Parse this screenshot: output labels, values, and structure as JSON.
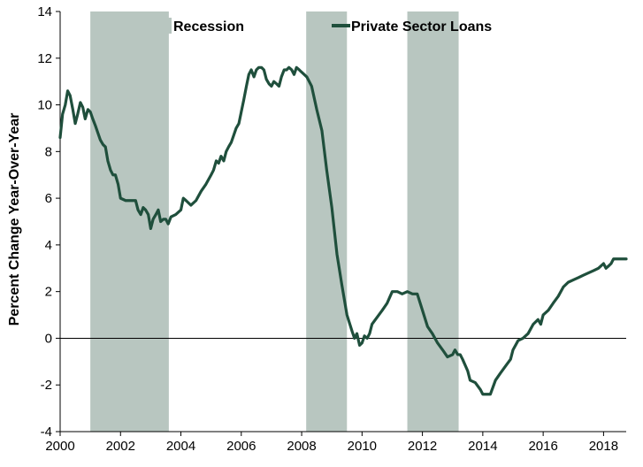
{
  "chart_data": {
    "type": "line",
    "title": "",
    "xlabel": "",
    "ylabel": "Percent Change Year-Over-Year",
    "xlim": [
      2000,
      2018.75
    ],
    "ylim": [
      -4,
      14
    ],
    "x_ticks": [
      "2000",
      "2002",
      "2004",
      "2006",
      "2008",
      "2010",
      "2012",
      "2014",
      "2016",
      "2018"
    ],
    "y_ticks": [
      "14",
      "12",
      "10",
      "8",
      "6",
      "4",
      "2",
      "0",
      "-2",
      "-4"
    ],
    "grid": false,
    "legend_position": "top",
    "legend": {
      "recession_label": "Recession",
      "series_label": "Private Sector Loans"
    },
    "colors": {
      "line": "#1f4f3c",
      "recession": "#b8c6c0",
      "axis": "#000000"
    },
    "recessions": [
      [
        2001.0,
        2003.6
      ],
      [
        2008.15,
        2009.5
      ],
      [
        2011.5,
        2013.2
      ]
    ],
    "series": [
      {
        "name": "Private Sector Loans",
        "points": [
          [
            2000.0,
            8.6
          ],
          [
            2000.08,
            9.6
          ],
          [
            2000.17,
            10.0
          ],
          [
            2000.25,
            10.6
          ],
          [
            2000.33,
            10.4
          ],
          [
            2000.42,
            9.8
          ],
          [
            2000.5,
            9.2
          ],
          [
            2000.58,
            9.6
          ],
          [
            2000.67,
            10.1
          ],
          [
            2000.75,
            9.9
          ],
          [
            2000.83,
            9.4
          ],
          [
            2000.92,
            9.8
          ],
          [
            2001.0,
            9.7
          ],
          [
            2001.08,
            9.4
          ],
          [
            2001.17,
            9.1
          ],
          [
            2001.25,
            8.8
          ],
          [
            2001.33,
            8.5
          ],
          [
            2001.42,
            8.3
          ],
          [
            2001.5,
            8.2
          ],
          [
            2001.58,
            7.6
          ],
          [
            2001.67,
            7.2
          ],
          [
            2001.75,
            7.0
          ],
          [
            2001.83,
            7.0
          ],
          [
            2001.92,
            6.6
          ],
          [
            2002.0,
            6.0
          ],
          [
            2002.17,
            5.9
          ],
          [
            2002.33,
            5.9
          ],
          [
            2002.5,
            5.9
          ],
          [
            2002.58,
            5.5
          ],
          [
            2002.67,
            5.3
          ],
          [
            2002.75,
            5.6
          ],
          [
            2002.83,
            5.5
          ],
          [
            2002.92,
            5.3
          ],
          [
            2003.0,
            4.7
          ],
          [
            2003.08,
            5.1
          ],
          [
            2003.17,
            5.3
          ],
          [
            2003.25,
            5.5
          ],
          [
            2003.33,
            5.0
          ],
          [
            2003.42,
            5.1
          ],
          [
            2003.5,
            5.1
          ],
          [
            2003.58,
            4.9
          ],
          [
            2003.67,
            5.2
          ],
          [
            2003.83,
            5.3
          ],
          [
            2004.0,
            5.5
          ],
          [
            2004.08,
            6.0
          ],
          [
            2004.17,
            5.9
          ],
          [
            2004.33,
            5.7
          ],
          [
            2004.5,
            5.9
          ],
          [
            2004.67,
            6.3
          ],
          [
            2004.83,
            6.6
          ],
          [
            2005.0,
            7.0
          ],
          [
            2005.08,
            7.2
          ],
          [
            2005.17,
            7.6
          ],
          [
            2005.25,
            7.5
          ],
          [
            2005.33,
            7.8
          ],
          [
            2005.42,
            7.6
          ],
          [
            2005.5,
            8.0
          ],
          [
            2005.58,
            8.2
          ],
          [
            2005.67,
            8.4
          ],
          [
            2005.75,
            8.7
          ],
          [
            2005.83,
            9.0
          ],
          [
            2005.92,
            9.2
          ],
          [
            2006.0,
            9.7
          ],
          [
            2006.08,
            10.2
          ],
          [
            2006.17,
            10.8
          ],
          [
            2006.25,
            11.3
          ],
          [
            2006.33,
            11.5
          ],
          [
            2006.42,
            11.2
          ],
          [
            2006.5,
            11.5
          ],
          [
            2006.58,
            11.6
          ],
          [
            2006.67,
            11.6
          ],
          [
            2006.75,
            11.5
          ],
          [
            2006.83,
            11.1
          ],
          [
            2006.92,
            10.9
          ],
          [
            2007.0,
            10.8
          ],
          [
            2007.08,
            11.0
          ],
          [
            2007.17,
            10.9
          ],
          [
            2007.25,
            10.8
          ],
          [
            2007.33,
            11.2
          ],
          [
            2007.42,
            11.5
          ],
          [
            2007.5,
            11.5
          ],
          [
            2007.58,
            11.6
          ],
          [
            2007.67,
            11.5
          ],
          [
            2007.75,
            11.3
          ],
          [
            2007.83,
            11.6
          ],
          [
            2007.92,
            11.5
          ],
          [
            2008.0,
            11.4
          ],
          [
            2008.17,
            11.2
          ],
          [
            2008.33,
            10.8
          ],
          [
            2008.5,
            9.8
          ],
          [
            2008.67,
            8.9
          ],
          [
            2008.83,
            7.2
          ],
          [
            2009.0,
            5.6
          ],
          [
            2009.17,
            3.6
          ],
          [
            2009.33,
            2.3
          ],
          [
            2009.5,
            1.0
          ],
          [
            2009.67,
            0.3
          ],
          [
            2009.75,
            0.0
          ],
          [
            2009.83,
            0.2
          ],
          [
            2009.92,
            -0.3
          ],
          [
            2010.0,
            -0.2
          ],
          [
            2010.08,
            0.1
          ],
          [
            2010.17,
            0.0
          ],
          [
            2010.25,
            0.2
          ],
          [
            2010.33,
            0.6
          ],
          [
            2010.5,
            0.9
          ],
          [
            2010.67,
            1.2
          ],
          [
            2010.83,
            1.5
          ],
          [
            2011.0,
            2.0
          ],
          [
            2011.17,
            2.0
          ],
          [
            2011.33,
            1.9
          ],
          [
            2011.5,
            2.0
          ],
          [
            2011.67,
            1.9
          ],
          [
            2011.83,
            1.9
          ],
          [
            2012.0,
            1.2
          ],
          [
            2012.17,
            0.5
          ],
          [
            2012.33,
            0.2
          ],
          [
            2012.5,
            -0.2
          ],
          [
            2012.67,
            -0.5
          ],
          [
            2012.83,
            -0.8
          ],
          [
            2013.0,
            -0.7
          ],
          [
            2013.08,
            -0.5
          ],
          [
            2013.17,
            -0.7
          ],
          [
            2013.25,
            -0.7
          ],
          [
            2013.33,
            -0.9
          ],
          [
            2013.5,
            -1.4
          ],
          [
            2013.58,
            -1.8
          ],
          [
            2013.75,
            -1.9
          ],
          [
            2013.92,
            -2.2
          ],
          [
            2014.0,
            -2.4
          ],
          [
            2014.25,
            -2.4
          ],
          [
            2014.42,
            -1.8
          ],
          [
            2014.58,
            -1.5
          ],
          [
            2014.75,
            -1.2
          ],
          [
            2014.92,
            -0.9
          ],
          [
            2015.0,
            -0.5
          ],
          [
            2015.17,
            -0.1
          ],
          [
            2015.33,
            0.0
          ],
          [
            2015.5,
            0.2
          ],
          [
            2015.67,
            0.6
          ],
          [
            2015.83,
            0.8
          ],
          [
            2015.92,
            0.6
          ],
          [
            2016.0,
            1.0
          ],
          [
            2016.17,
            1.2
          ],
          [
            2016.33,
            1.5
          ],
          [
            2016.5,
            1.8
          ],
          [
            2016.67,
            2.2
          ],
          [
            2016.83,
            2.4
          ],
          [
            2017.0,
            2.5
          ],
          [
            2017.17,
            2.6
          ],
          [
            2017.33,
            2.7
          ],
          [
            2017.5,
            2.8
          ],
          [
            2017.67,
            2.9
          ],
          [
            2017.83,
            3.0
          ],
          [
            2018.0,
            3.2
          ],
          [
            2018.08,
            3.0
          ],
          [
            2018.17,
            3.1
          ],
          [
            2018.25,
            3.2
          ],
          [
            2018.33,
            3.4
          ],
          [
            2018.42,
            3.4
          ],
          [
            2018.58,
            3.4
          ],
          [
            2018.75,
            3.4
          ]
        ]
      }
    ]
  }
}
